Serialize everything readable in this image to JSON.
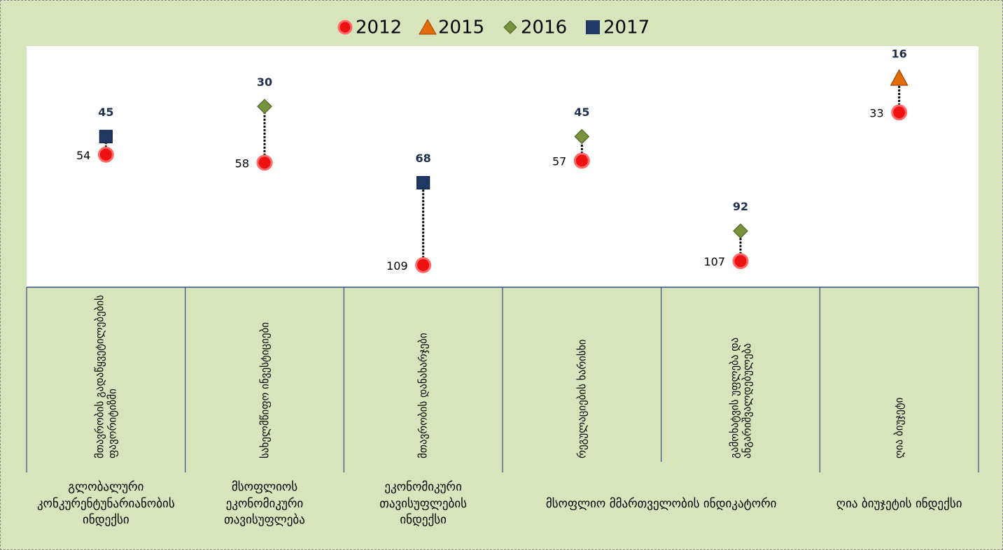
{
  "chart_data": {
    "type": "dot",
    "categories": [
      "მთავრობის გადაწყვეტილებების ფავორიტიზმი",
      "სახელმწიფო ინვესტიციები",
      "მთავრობის დანახარჯები",
      "რეგულაციების ხარისხი",
      "გამოხატვის უფლება და ანგარიშვალდებულება",
      "ღია ბიუჯეტი"
    ],
    "groups": [
      "გლობალური კონკურენტუნარიანობის ინდექსი",
      "მსოფლიოს ეკონომიკური თავისუფლება",
      "ეკონომიკური თავისუფლების ინდექსი",
      "მსოფლიო მმართველობის ინდიკატორი",
      null,
      "ღია ბიუჯეტის ინდექსი"
    ],
    "series": [
      {
        "name": "2012",
        "color": "#ee1111",
        "marker": "circle",
        "values": [
          54,
          58,
          109,
          57,
          107,
          33
        ]
      },
      {
        "name": "2015",
        "color": "#e36c0a",
        "marker": "triangle",
        "values": [
          null,
          null,
          null,
          null,
          null,
          16
        ]
      },
      {
        "name": "2016",
        "color": "#77933c",
        "marker": "diamond",
        "values": [
          null,
          30,
          null,
          45,
          92,
          null
        ]
      },
      {
        "name": "2017",
        "color": "#1f3864",
        "marker": "square",
        "values": [
          45,
          null,
          68,
          null,
          null,
          null
        ]
      }
    ],
    "ylim": [
      120,
      0
    ]
  }
}
